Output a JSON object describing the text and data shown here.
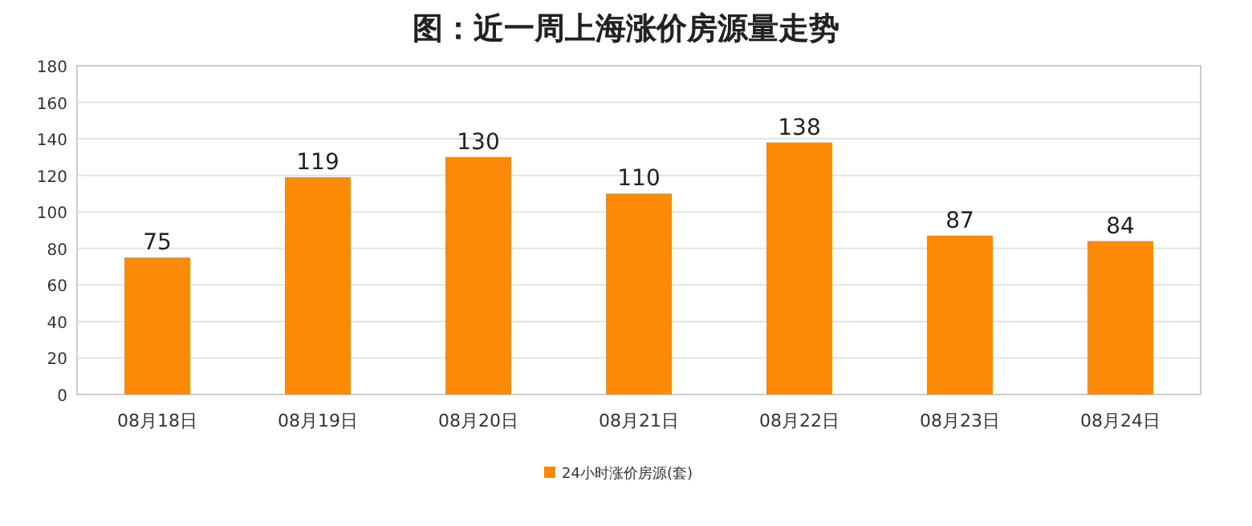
{
  "chart_data": {
    "type": "bar",
    "title": "图：近一周上海涨价房源量走势",
    "categories": [
      "08月18日",
      "08月19日",
      "08月20日",
      "08月21日",
      "08月22日",
      "08月23日",
      "08月24日"
    ],
    "series": [
      {
        "name": "24小时涨价房源(套)",
        "color": "#fb8a06",
        "values": [
          75,
          119,
          130,
          110,
          138,
          87,
          84
        ]
      }
    ],
    "ylim": [
      0,
      180
    ],
    "yticks": [
      0,
      20,
      40,
      60,
      80,
      100,
      120,
      140,
      160,
      180
    ],
    "data_labels": true,
    "grid": "y",
    "legend": "bottom"
  }
}
